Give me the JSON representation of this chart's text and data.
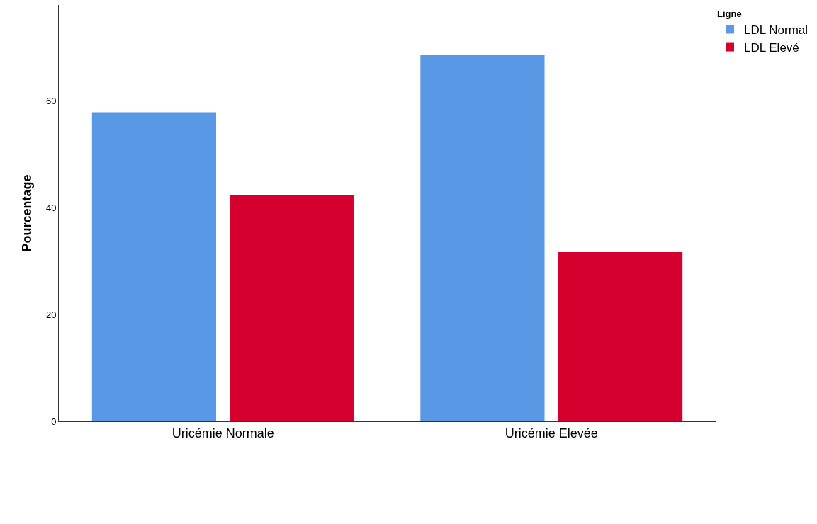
{
  "chart_data": {
    "type": "bar",
    "ylabel": "Pourcentage",
    "legend_title": "Ligne",
    "categories": [
      "Uricémie Normale",
      "Uricémie Elevée"
    ],
    "series": [
      {
        "name": "LDL Normal",
        "color": "#5898e4",
        "values": [
          57.9,
          68.6
        ]
      },
      {
        "name": "LDL Elevé",
        "color": "#d6002f",
        "values": [
          42.4,
          31.7
        ]
      }
    ],
    "ylim": [
      0,
      78
    ],
    "yticks": [
      0,
      20,
      40,
      60
    ],
    "grid": false,
    "legend": "top right"
  }
}
